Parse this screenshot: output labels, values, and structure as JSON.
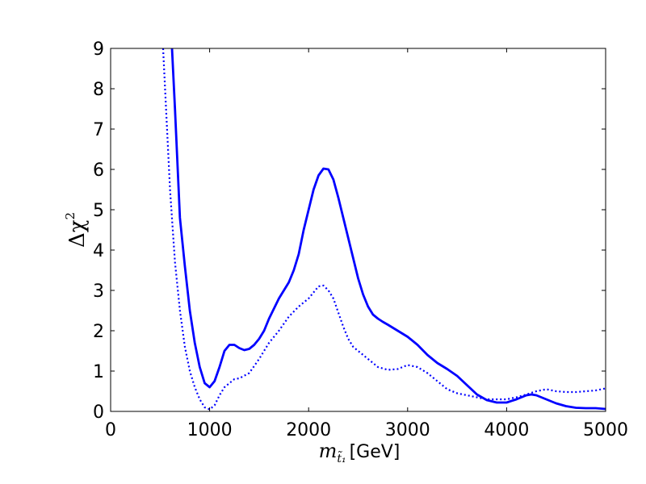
{
  "chart_data": {
    "type": "line",
    "xlabel": {
      "symbol": "m",
      "subscript": "t̃₁",
      "unit": "[GeV]"
    },
    "ylabel": {
      "symbol": "Δχ",
      "superscript": "2"
    },
    "xlim": [
      0,
      5000
    ],
    "ylim": [
      0,
      9
    ],
    "xticks": [
      0,
      1000,
      2000,
      3000,
      4000,
      5000
    ],
    "yticks": [
      0,
      1,
      2,
      3,
      4,
      5,
      6,
      7,
      8,
      9
    ],
    "grid": false,
    "legend": "none",
    "series": [
      {
        "style": "solid",
        "color": "#0000ff",
        "x": [
          620,
          650,
          700,
          750,
          800,
          850,
          900,
          950,
          1000,
          1050,
          1100,
          1150,
          1200,
          1250,
          1300,
          1350,
          1400,
          1450,
          1500,
          1550,
          1600,
          1700,
          1800,
          1850,
          1900,
          1950,
          2000,
          2050,
          2100,
          2150,
          2200,
          2250,
          2300,
          2350,
          2400,
          2450,
          2500,
          2550,
          2600,
          2650,
          2700,
          2750,
          2800,
          2900,
          3000,
          3100,
          3200,
          3300,
          3400,
          3500,
          3600,
          3700,
          3800,
          3900,
          4000,
          4100,
          4200,
          4250,
          4300,
          4400,
          4500,
          4600,
          4700,
          4800,
          4900,
          5000
        ],
        "y": [
          9.0,
          7.5,
          4.8,
          3.6,
          2.5,
          1.7,
          1.1,
          0.7,
          0.6,
          0.75,
          1.1,
          1.5,
          1.65,
          1.65,
          1.57,
          1.52,
          1.55,
          1.65,
          1.8,
          2.0,
          2.3,
          2.8,
          3.2,
          3.5,
          3.9,
          4.5,
          5.0,
          5.5,
          5.85,
          6.02,
          6.0,
          5.75,
          5.3,
          4.8,
          4.3,
          3.8,
          3.3,
          2.9,
          2.6,
          2.4,
          2.3,
          2.22,
          2.15,
          2.0,
          1.85,
          1.65,
          1.4,
          1.2,
          1.05,
          0.88,
          0.65,
          0.42,
          0.28,
          0.22,
          0.22,
          0.3,
          0.4,
          0.42,
          0.4,
          0.3,
          0.2,
          0.13,
          0.09,
          0.08,
          0.08,
          0.06
        ]
      },
      {
        "style": "dotted",
        "color": "#0000ff",
        "x": [
          530,
          550,
          600,
          650,
          700,
          750,
          800,
          850,
          900,
          950,
          1000,
          1050,
          1100,
          1150,
          1200,
          1250,
          1300,
          1400,
          1500,
          1600,
          1700,
          1800,
          1900,
          2000,
          2050,
          2100,
          2150,
          2200,
          2250,
          2300,
          2350,
          2400,
          2450,
          2500,
          2600,
          2700,
          2800,
          2900,
          3000,
          3100,
          3200,
          3300,
          3400,
          3500,
          3600,
          3700,
          3800,
          3900,
          4000,
          4100,
          4200,
          4300,
          4400,
          4500,
          4600,
          4700,
          4800,
          4900,
          5000
        ],
        "y": [
          9.0,
          8.0,
          5.5,
          3.7,
          2.5,
          1.6,
          1.0,
          0.6,
          0.3,
          0.1,
          0.05,
          0.15,
          0.4,
          0.6,
          0.7,
          0.8,
          0.82,
          0.95,
          1.3,
          1.7,
          2.0,
          2.35,
          2.6,
          2.8,
          2.95,
          3.1,
          3.12,
          3.0,
          2.8,
          2.45,
          2.1,
          1.8,
          1.6,
          1.5,
          1.3,
          1.1,
          1.03,
          1.05,
          1.15,
          1.1,
          0.95,
          0.75,
          0.55,
          0.45,
          0.4,
          0.35,
          0.3,
          0.3,
          0.3,
          0.35,
          0.42,
          0.5,
          0.55,
          0.5,
          0.48,
          0.48,
          0.5,
          0.52,
          0.57
        ]
      }
    ]
  }
}
